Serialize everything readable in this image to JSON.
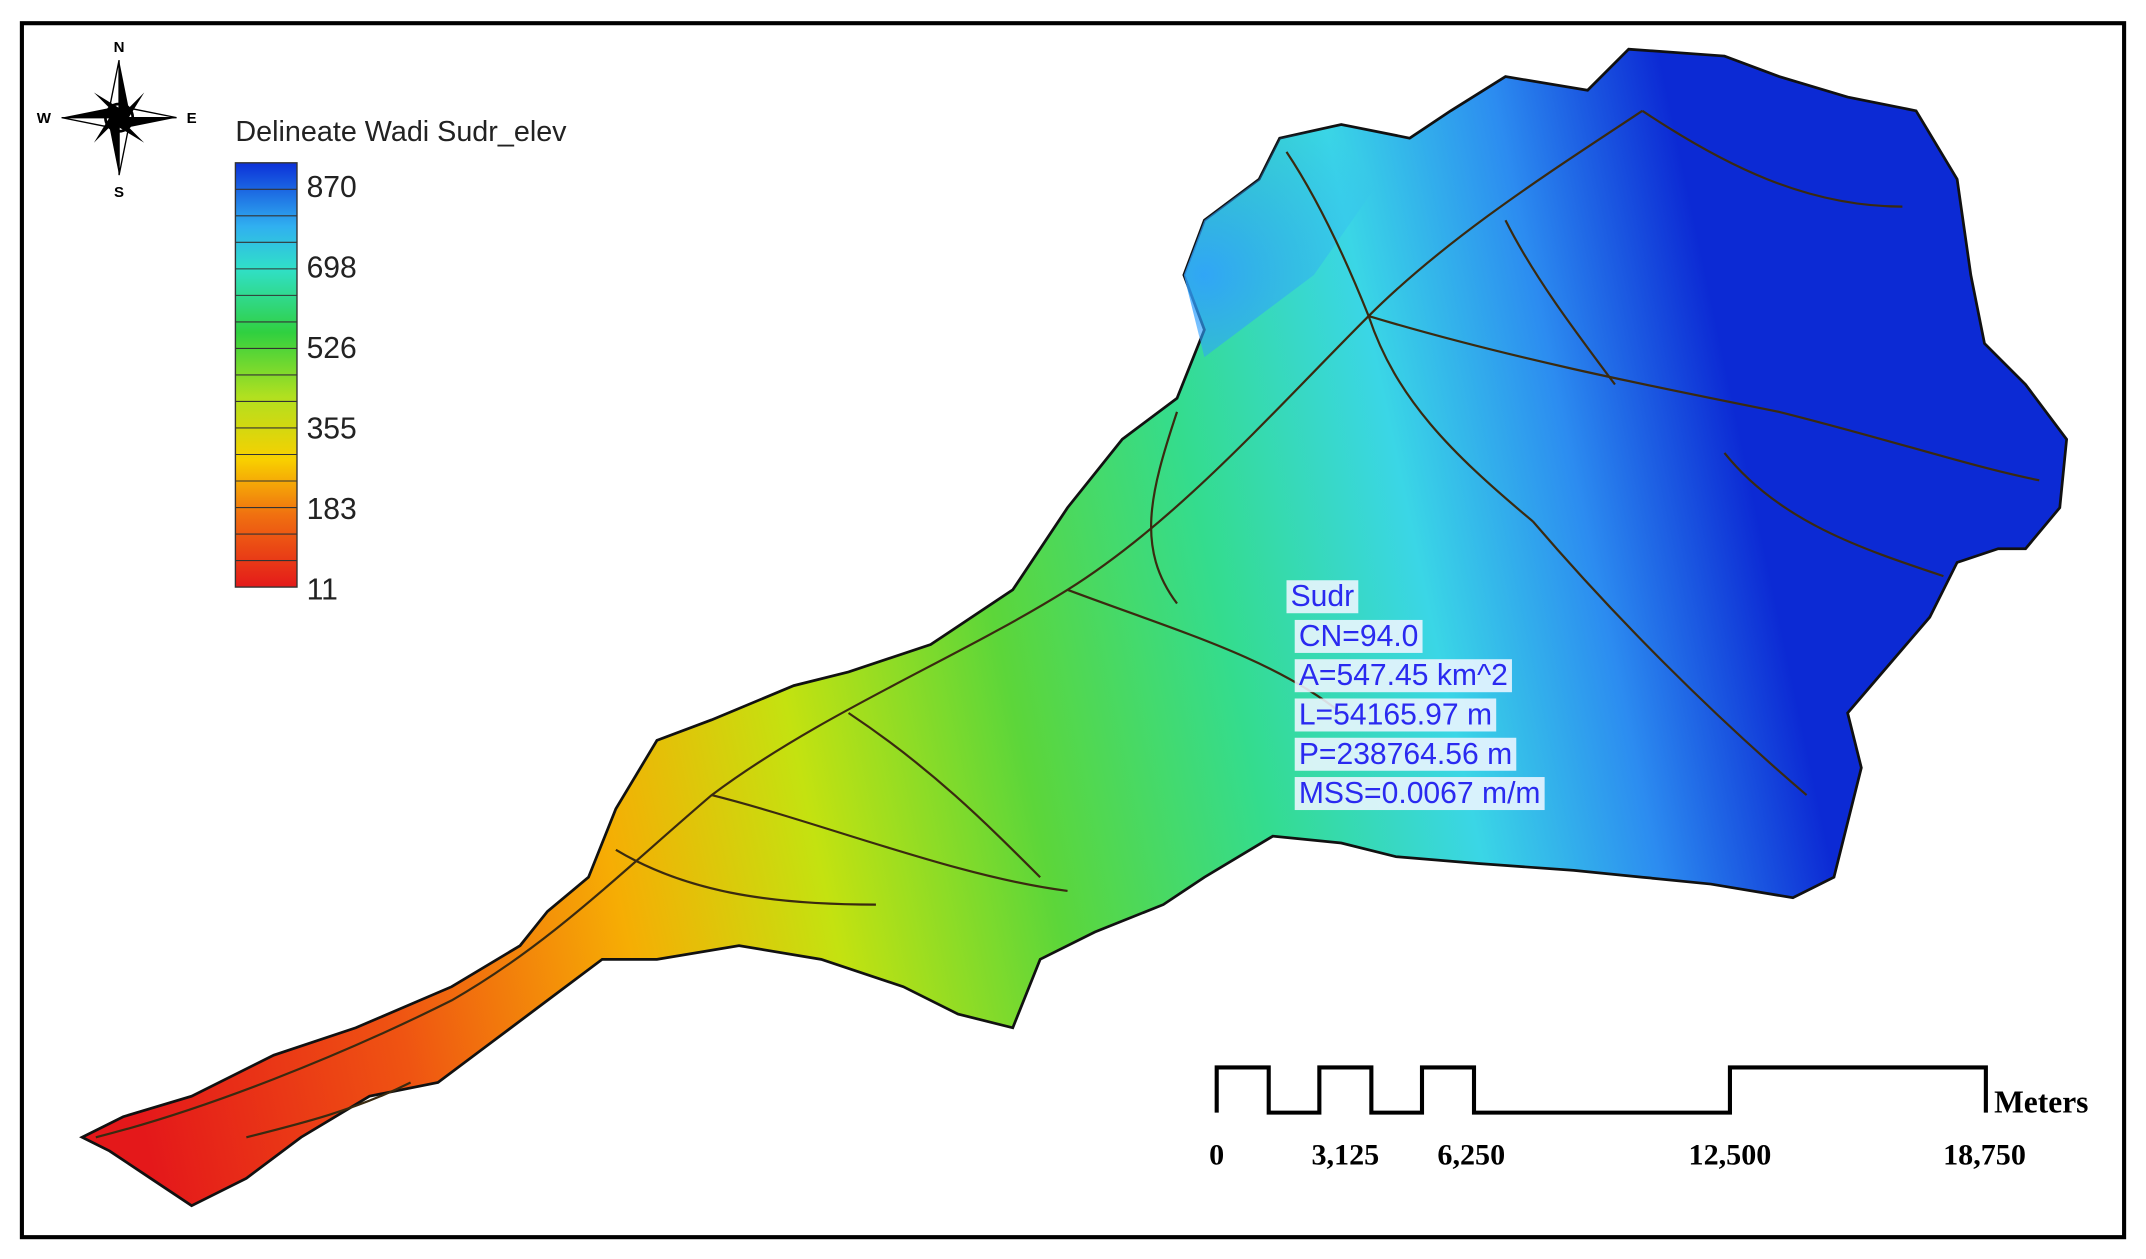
{
  "compass": {
    "north": "N",
    "south": "S",
    "east": "E",
    "west": "W"
  },
  "legend": {
    "title": "Delineate Wadi Sudr_elev",
    "labels": [
      "870",
      "698",
      "526",
      "355",
      "183",
      "11"
    ]
  },
  "info": {
    "name": "Sudr",
    "lines": [
      "CN=94.0",
      "A=547.45 km^2",
      "L=54165.97 m",
      "P=238764.56 m",
      "MSS=0.0067 m/m"
    ]
  },
  "scale_bar": {
    "unit": "Meters",
    "labels": [
      "0",
      "3,125",
      "6,250",
      "12,500",
      "18,750"
    ]
  }
}
